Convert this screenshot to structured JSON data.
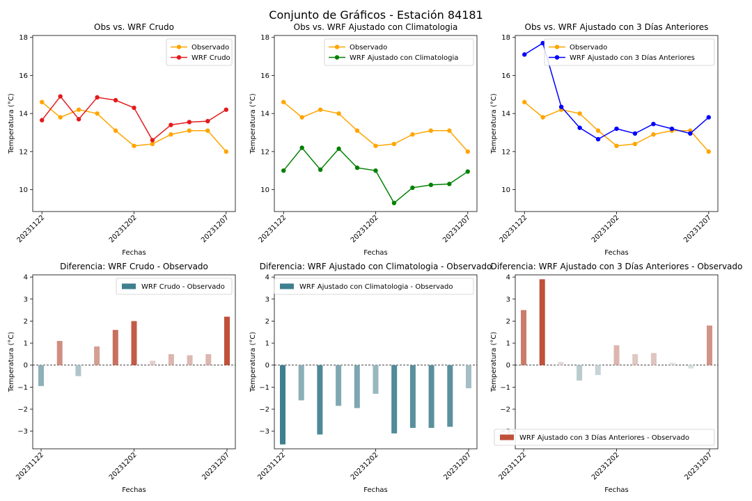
{
  "figure": {
    "suptitle": "Conjunto de Gráficos - Estación 84181"
  },
  "colors": {
    "observado": "#ffa500",
    "wrf_crudo": "#e41a1c",
    "wrf_clima": "#008000",
    "wrf_3dias": "#0000ff",
    "bar_negative": "#3f7f8f",
    "bar_positive": "#c0503a",
    "zero_line": "#000000"
  },
  "chart_data": [
    {
      "type": "line",
      "title": "Obs vs. WRF Crudo",
      "xlabel": "Fechas",
      "ylabel": "Temperatura (°C)",
      "x": [
        0,
        1,
        2,
        3,
        4,
        5,
        6,
        7,
        8,
        9,
        10
      ],
      "xticks": [
        0,
        5,
        10
      ],
      "xticklabels": [
        "20231122",
        "20231202",
        "20231207"
      ],
      "ylim": [
        8.85,
        18.1
      ],
      "yticks": [
        10,
        12,
        14,
        16,
        18
      ],
      "legend_position": "upper right",
      "series": [
        {
          "name": "Observado",
          "color_key": "observado",
          "values": [
            14.6,
            13.8,
            14.2,
            14.0,
            13.1,
            12.3,
            12.4,
            12.9,
            13.1,
            13.1,
            12.0
          ]
        },
        {
          "name": "WRF Crudo",
          "color_key": "wrf_crudo",
          "values": [
            13.65,
            14.9,
            13.7,
            14.85,
            14.7,
            14.3,
            12.6,
            13.4,
            13.55,
            13.6,
            14.2
          ]
        }
      ]
    },
    {
      "type": "line",
      "title": "Obs vs. WRF Ajustado con Climatologia",
      "xlabel": "Fechas",
      "ylabel": "Temperatura (°C)",
      "x": [
        0,
        1,
        2,
        3,
        4,
        5,
        6,
        7,
        8,
        9,
        10
      ],
      "xticks": [
        0,
        5,
        10
      ],
      "xticklabels": [
        "20231122",
        "20231202",
        "20231207"
      ],
      "ylim": [
        8.85,
        18.1
      ],
      "yticks": [
        10,
        12,
        14,
        16,
        18
      ],
      "legend_position": "upper right",
      "series": [
        {
          "name": "Observado",
          "color_key": "observado",
          "values": [
            14.6,
            13.8,
            14.2,
            14.0,
            13.1,
            12.3,
            12.4,
            12.9,
            13.1,
            13.1,
            12.0
          ]
        },
        {
          "name": "WRF Ajustado con Climatologia",
          "color_key": "wrf_clima",
          "values": [
            11.0,
            12.2,
            11.05,
            12.15,
            11.15,
            11.0,
            9.3,
            10.1,
            10.25,
            10.3,
            10.95
          ]
        }
      ]
    },
    {
      "type": "line",
      "title": "Obs vs. WRF Ajustado con 3 Días Anteriores",
      "xlabel": "Fechas",
      "ylabel": "Temperatura (°C)",
      "x": [
        0,
        1,
        2,
        3,
        4,
        5,
        6,
        7,
        8,
        9,
        10
      ],
      "xticks": [
        0,
        5,
        10
      ],
      "xticklabels": [
        "20231122",
        "20231202",
        "20231207"
      ],
      "ylim": [
        8.85,
        18.1
      ],
      "yticks": [
        10,
        12,
        14,
        16,
        18
      ],
      "legend_position": "upper right",
      "series": [
        {
          "name": "Observado",
          "color_key": "observado",
          "values": [
            14.6,
            13.8,
            14.2,
            14.0,
            13.1,
            12.3,
            12.4,
            12.9,
            13.1,
            13.1,
            12.0
          ]
        },
        {
          "name": "WRF Ajustado con 3 Días Anteriores",
          "color_key": "wrf_3dias",
          "values": [
            17.1,
            17.7,
            14.35,
            13.25,
            12.65,
            13.2,
            12.95,
            13.45,
            13.2,
            12.95,
            13.8
          ]
        }
      ]
    },
    {
      "type": "bar",
      "title": "Diferencia: WRF Crudo - Observado",
      "xlabel": "Fechas",
      "ylabel": "Temperatura (°C)",
      "x": [
        0,
        1,
        2,
        3,
        4,
        5,
        6,
        7,
        8,
        9,
        10
      ],
      "xticks": [
        0,
        5,
        10
      ],
      "xticklabels": [
        "20231122",
        "20231202",
        "20231207"
      ],
      "ylim": [
        -3.8,
        4.1
      ],
      "yticks": [
        -3,
        -2,
        -1,
        0,
        1,
        2,
        3,
        4
      ],
      "legend_position": "upper right",
      "series": [
        {
          "name": "WRF Crudo - Observado",
          "values": [
            -0.95,
            1.1,
            -0.5,
            0.85,
            1.6,
            2.0,
            0.2,
            0.5,
            0.45,
            0.5,
            2.2
          ]
        }
      ]
    },
    {
      "type": "bar",
      "title": "Diferencia: WRF Ajustado con Climatologia - Observado",
      "xlabel": "Fechas",
      "ylabel": "Temperatura (°C)",
      "x": [
        0,
        1,
        2,
        3,
        4,
        5,
        6,
        7,
        8,
        9,
        10
      ],
      "xticks": [
        0,
        5,
        10
      ],
      "xticklabels": [
        "20231122",
        "20231202",
        "20231207"
      ],
      "ylim": [
        -3.8,
        4.1
      ],
      "yticks": [
        -3,
        -2,
        -1,
        0,
        1,
        2,
        3,
        4
      ],
      "legend_position": "upper right",
      "series": [
        {
          "name": "WRF Ajustado con Climatologia - Observado",
          "values": [
            -3.6,
            -1.6,
            -3.15,
            -1.85,
            -1.95,
            -1.3,
            -3.1,
            -2.85,
            -2.85,
            -2.8,
            -1.05
          ]
        }
      ]
    },
    {
      "type": "bar",
      "title": "Diferencia: WRF Ajustado con 3 Días Anteriores - Observado",
      "xlabel": "Fechas",
      "ylabel": "Temperatura (°C)",
      "x": [
        0,
        1,
        2,
        3,
        4,
        5,
        6,
        7,
        8,
        9,
        10
      ],
      "xticks": [
        0,
        5,
        10
      ],
      "xticklabels": [
        "20231122",
        "20231202",
        "20231207"
      ],
      "ylim": [
        -3.8,
        4.1
      ],
      "yticks": [
        -3,
        -2,
        -1,
        0,
        1,
        2,
        3,
        4
      ],
      "legend_position": "lower right",
      "series": [
        {
          "name": "WRF Ajustado con 3 Días Anteriores - Observado",
          "values": [
            2.5,
            3.9,
            0.15,
            -0.7,
            -0.45,
            0.9,
            0.5,
            0.55,
            0.1,
            -0.15,
            1.8
          ]
        }
      ]
    }
  ]
}
